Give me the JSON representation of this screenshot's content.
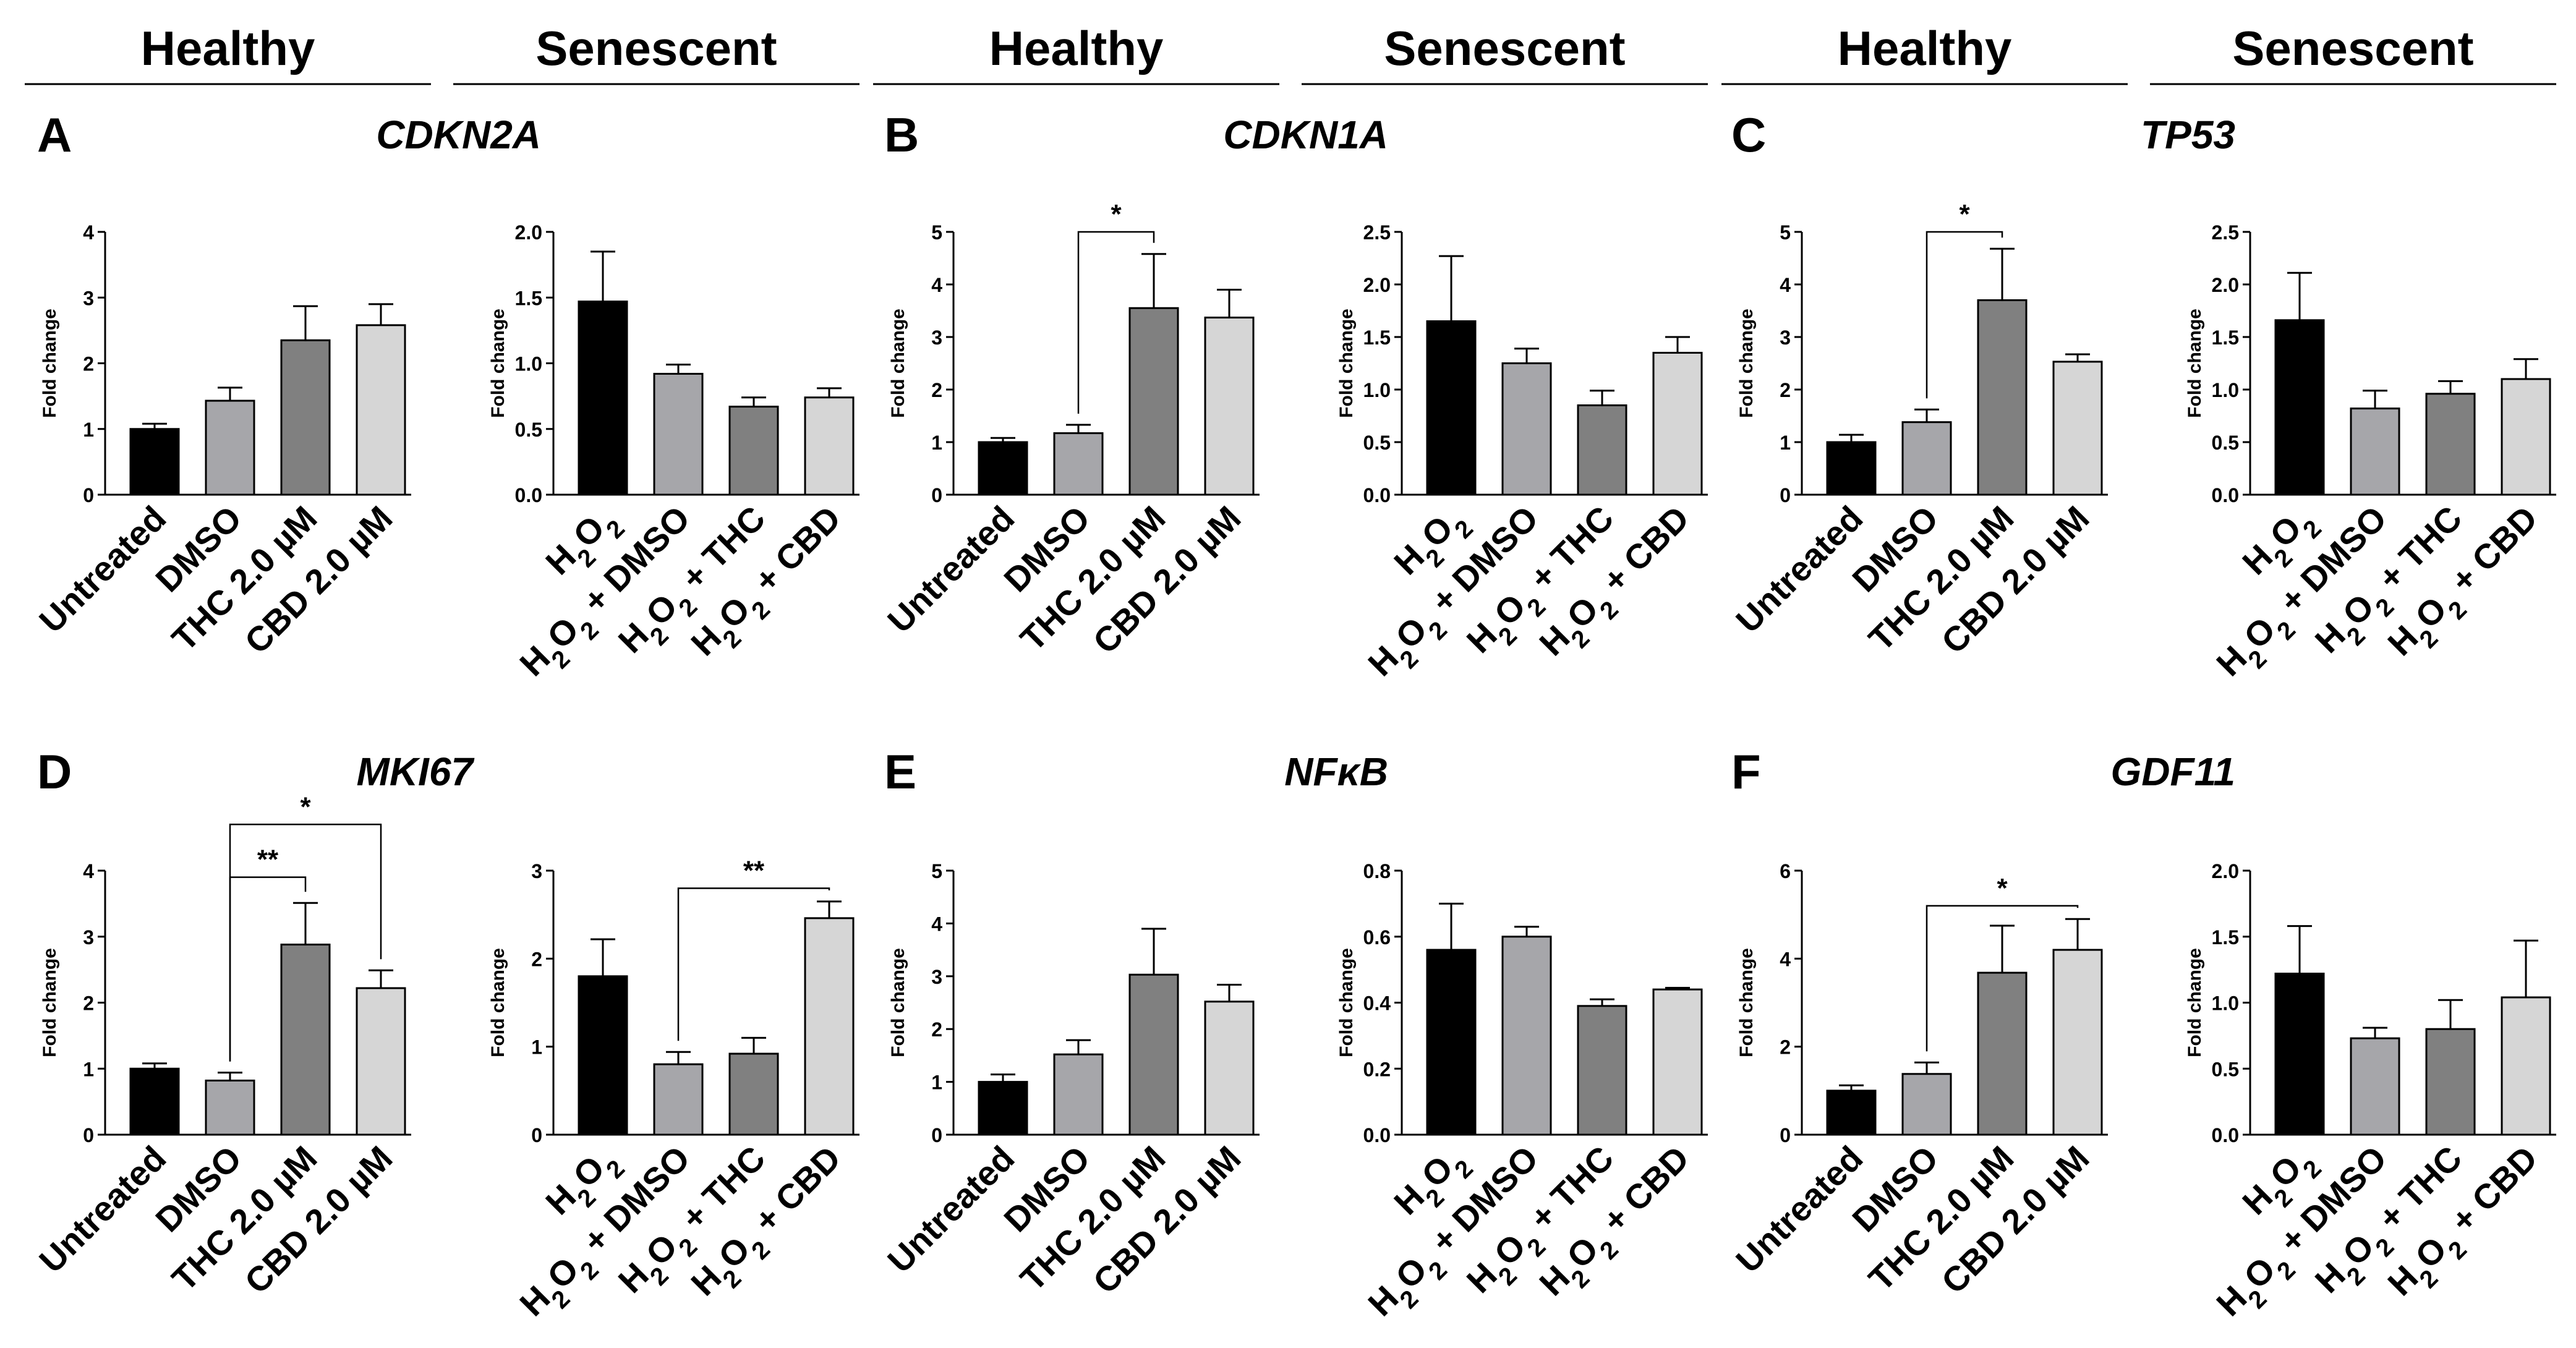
{
  "headers": [
    {
      "label": "Healthy",
      "x0": 40,
      "x1": 697
    },
    {
      "label": "Senescent",
      "x0": 733,
      "x1": 1390
    },
    {
      "label": "Healthy",
      "x0": 1412,
      "x1": 2069
    },
    {
      "label": "Senescent",
      "x0": 2105,
      "x1": 2762
    },
    {
      "label": "Healthy",
      "x0": 2784,
      "x1": 3441
    },
    {
      "label": "Senescent",
      "x0": 3477,
      "x1": 4134
    }
  ],
  "panels": [
    {
      "letter": "A",
      "gene": "CDKN2A"
    },
    {
      "letter": "B",
      "gene": "CDKN1A"
    },
    {
      "letter": "C",
      "gene": "TP53"
    },
    {
      "letter": "D",
      "gene": "MKI67"
    },
    {
      "letter": "E",
      "gene": "NFκB"
    },
    {
      "letter": "F",
      "gene": "GDF11"
    }
  ],
  "colors": {
    "black": "#000000",
    "dark_gray": "#808080",
    "mid_gray": "#a6a6aa",
    "light_gray": "#d6d6d6"
  },
  "chart_data": [
    {
      "type": "bar",
      "panel": "A",
      "group": "Healthy",
      "title": "CDKN2A",
      "ylabel": "Fold change",
      "categories": [
        "Untreated",
        "DMSO",
        "THC 2.0 µM",
        "CBD 2.0 µM"
      ],
      "values": [
        1.0,
        1.43,
        2.35,
        2.58
      ],
      "errors": [
        0.08,
        0.2,
        0.52,
        0.32
      ],
      "ylim": [
        0,
        4
      ],
      "yticks": [
        "0",
        "1",
        "2",
        "3",
        "4"
      ],
      "significance": []
    },
    {
      "type": "bar",
      "panel": "A",
      "group": "Senescent",
      "title": "CDKN2A",
      "ylabel": "Fold change",
      "categories": [
        "H2O2",
        "H2O2 + DMSO",
        "H2O2 + THC",
        "H2O2 + CBD"
      ],
      "values": [
        1.47,
        0.92,
        0.67,
        0.74
      ],
      "errors": [
        0.38,
        0.07,
        0.07,
        0.07
      ],
      "ylim": [
        0,
        2
      ],
      "yticks": [
        "0.0",
        "0.5",
        "1.0",
        "1.5",
        "2.0"
      ],
      "significance": []
    },
    {
      "type": "bar",
      "panel": "B",
      "group": "Healthy",
      "title": "CDKN1A",
      "ylabel": "Fold change",
      "categories": [
        "Untreated",
        "DMSO",
        "THC 2.0 µM",
        "CBD 2.0 µM"
      ],
      "values": [
        1.0,
        1.17,
        3.55,
        3.37
      ],
      "errors": [
        0.08,
        0.16,
        1.03,
        0.53
      ],
      "ylim": [
        0,
        5
      ],
      "yticks": [
        "0",
        "1",
        "2",
        "3",
        "4",
        "5"
      ],
      "significance": [
        {
          "from": 1,
          "to": 2,
          "label": "*",
          "level": 5.0
        }
      ]
    },
    {
      "type": "bar",
      "panel": "B",
      "group": "Senescent",
      "title": "CDKN1A",
      "ylabel": "Fold change",
      "categories": [
        "H2O2",
        "H2O2 + DMSO",
        "H2O2 + THC",
        "H2O2 + CBD"
      ],
      "values": [
        1.65,
        1.25,
        0.85,
        1.35
      ],
      "errors": [
        0.62,
        0.14,
        0.14,
        0.15
      ],
      "ylim": [
        0,
        2.5
      ],
      "yticks": [
        "0.0",
        "0.5",
        "1.0",
        "1.5",
        "2.0",
        "2.5"
      ],
      "significance": []
    },
    {
      "type": "bar",
      "panel": "C",
      "group": "Healthy",
      "title": "TP53",
      "ylabel": "Fold change",
      "categories": [
        "Untreated",
        "DMSO",
        "THC 2.0 µM",
        "CBD 2.0 µM"
      ],
      "values": [
        1.0,
        1.38,
        3.7,
        2.53
      ],
      "errors": [
        0.14,
        0.24,
        0.98,
        0.14
      ],
      "ylim": [
        0,
        5
      ],
      "yticks": [
        "0",
        "1",
        "2",
        "3",
        "4",
        "5"
      ],
      "significance": [
        {
          "from": 1,
          "to": 2,
          "label": "*",
          "level": 5.0
        }
      ]
    },
    {
      "type": "bar",
      "panel": "C",
      "group": "Senescent",
      "title": "TP53",
      "ylabel": "Fold change",
      "categories": [
        "H2O2",
        "H2O2 + DMSO",
        "H2O2 + THC",
        "H2O2 + CBD"
      ],
      "values": [
        1.66,
        0.82,
        0.96,
        1.1
      ],
      "errors": [
        0.45,
        0.17,
        0.12,
        0.19
      ],
      "ylim": [
        0,
        2.5
      ],
      "yticks": [
        "0.0",
        "0.5",
        "1.0",
        "1.5",
        "2.0",
        "2.5"
      ],
      "significance": []
    },
    {
      "type": "bar",
      "panel": "D",
      "group": "Healthy",
      "title": "MKI67",
      "ylabel": "Fold change",
      "categories": [
        "Untreated",
        "DMSO",
        "THC 2.0 µM",
        "CBD 2.0 µM"
      ],
      "values": [
        1.0,
        0.82,
        2.88,
        2.22
      ],
      "errors": [
        0.08,
        0.12,
        0.63,
        0.27
      ],
      "ylim": [
        0,
        4
      ],
      "yticks": [
        "0",
        "1",
        "2",
        "3",
        "4"
      ],
      "significance": [
        {
          "from": 1,
          "to": 2,
          "label": "**",
          "level": 3.9
        },
        {
          "from": 1,
          "to": 3,
          "label": "*",
          "level": 4.7
        }
      ]
    },
    {
      "type": "bar",
      "panel": "D",
      "group": "Senescent",
      "title": "MKI67",
      "ylabel": "Fold change",
      "categories": [
        "H2O2",
        "H2O2 + DMSO",
        "H2O2 + THC",
        "H2O2 + CBD"
      ],
      "values": [
        1.8,
        0.8,
        0.92,
        2.46
      ],
      "errors": [
        0.42,
        0.14,
        0.18,
        0.19
      ],
      "ylim": [
        0,
        3
      ],
      "yticks": [
        "0",
        "1",
        "2",
        "3"
      ],
      "significance": [
        {
          "from": 1,
          "to": 3,
          "label": "**",
          "level": 2.8
        }
      ]
    },
    {
      "type": "bar",
      "panel": "E",
      "group": "Healthy",
      "title": "NFκB",
      "ylabel": "Fold change",
      "categories": [
        "Untreated",
        "DMSO",
        "THC 2.0 µM",
        "CBD 2.0 µM"
      ],
      "values": [
        1.0,
        1.52,
        3.03,
        2.52
      ],
      "errors": [
        0.14,
        0.27,
        0.87,
        0.32
      ],
      "ylim": [
        0,
        5
      ],
      "yticks": [
        "0",
        "1",
        "2",
        "3",
        "4",
        "5"
      ],
      "significance": []
    },
    {
      "type": "bar",
      "panel": "E",
      "group": "Senescent",
      "title": "NFκB",
      "ylabel": "Fold change",
      "categories": [
        "H2O2",
        "H2O2 + DMSO",
        "H2O2 + THC",
        "H2O2 + CBD"
      ],
      "values": [
        0.56,
        0.6,
        0.39,
        0.44
      ],
      "errors": [
        0.14,
        0.03,
        0.02,
        0.005
      ],
      "ylim": [
        0,
        0.8
      ],
      "yticks": [
        "0.0",
        "0.2",
        "0.4",
        "0.6",
        "0.8"
      ],
      "significance": []
    },
    {
      "type": "bar",
      "panel": "F",
      "group": "Healthy",
      "title": "GDF11",
      "ylabel": "Fold change",
      "categories": [
        "Untreated",
        "DMSO",
        "THC 2.0 µM",
        "CBD 2.0 µM"
      ],
      "values": [
        1.0,
        1.38,
        3.68,
        4.2
      ],
      "errors": [
        0.12,
        0.26,
        1.07,
        0.7
      ],
      "ylim": [
        0,
        6
      ],
      "yticks": [
        "0",
        "2",
        "4",
        "6"
      ],
      "significance": [
        {
          "from": 1,
          "to": 3,
          "label": "*",
          "level": 5.2
        }
      ]
    },
    {
      "type": "bar",
      "panel": "F",
      "group": "Senescent",
      "title": "GDF11",
      "ylabel": "Fold change",
      "categories": [
        "H2O2",
        "H2O2 + DMSO",
        "H2O2 + THC",
        "H2O2 + CBD"
      ],
      "values": [
        1.22,
        0.73,
        0.8,
        1.04
      ],
      "errors": [
        0.36,
        0.08,
        0.22,
        0.43
      ],
      "ylim": [
        0,
        2
      ],
      "yticks": [
        "0.0",
        "0.5",
        "1.0",
        "1.5",
        "2.0"
      ],
      "significance": []
    }
  ]
}
